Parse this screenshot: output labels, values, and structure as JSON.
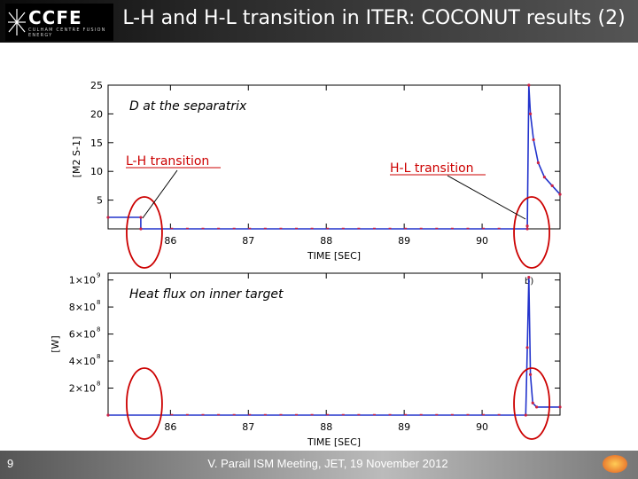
{
  "slide": {
    "title": "L-H and H-L transition in ITER: COCONUT results (2)",
    "page_number": "9",
    "footer": "V. Parail ISM Meeting, JET, 19 November 2012",
    "logo_text": "CCFE",
    "logo_subtitle": "CULHAM CENTRE FUSION ENERGY"
  },
  "colors": {
    "series": "#2233cc",
    "marker": "#cc2244",
    "circle": "#cc0000",
    "axis": "#000000"
  },
  "chart_data": [
    {
      "type": "line",
      "annotation": "D at the separatrix",
      "xlabel": "TIME [SEC]",
      "ylabel": "[M2 S-1]",
      "xlim": [
        85.2,
        91.0
      ],
      "ylim": [
        0,
        25
      ],
      "x_ticks": [
        "86",
        "87",
        "88",
        "89",
        "90"
      ],
      "y_ticks": [
        "5",
        "10",
        "15",
        "20",
        "25"
      ],
      "series": [
        {
          "x": [
            85.2,
            85.62,
            85.62,
            90.58,
            90.58,
            90.6,
            90.62,
            90.66,
            90.72,
            90.8,
            90.9,
            91.0
          ],
          "y": [
            2.0,
            2.0,
            0.0,
            0.0,
            0.5,
            25.0,
            20.0,
            15.5,
            11.5,
            9.0,
            7.5,
            6.0
          ]
        }
      ],
      "callouts": [
        {
          "text": "L-H transition",
          "x": 85.62
        },
        {
          "text": "H-L transition",
          "x": 90.58
        }
      ]
    },
    {
      "type": "line",
      "annotation": "Heat flux on inner target",
      "panel_label": "b)",
      "xlabel": "TIME [SEC]",
      "ylabel": "[W]",
      "xlim": [
        85.2,
        91.0
      ],
      "ylim": [
        0,
        1050000000
      ],
      "x_ticks": [
        "86",
        "87",
        "88",
        "89",
        "90"
      ],
      "y_ticks": [
        {
          "base": "2×10",
          "exp": "8"
        },
        {
          "base": "4×10",
          "exp": "8"
        },
        {
          "base": "6×10",
          "exp": "8"
        },
        {
          "base": "8×10",
          "exp": "8"
        },
        {
          "base": "1×10",
          "exp": "9"
        }
      ],
      "series": [
        {
          "x": [
            85.2,
            90.56,
            90.58,
            90.6,
            90.62,
            90.65,
            90.7,
            91.0
          ],
          "y": [
            0,
            0,
            500000000,
            1020000000,
            300000000,
            90000000,
            60000000,
            60000000
          ]
        }
      ]
    }
  ]
}
